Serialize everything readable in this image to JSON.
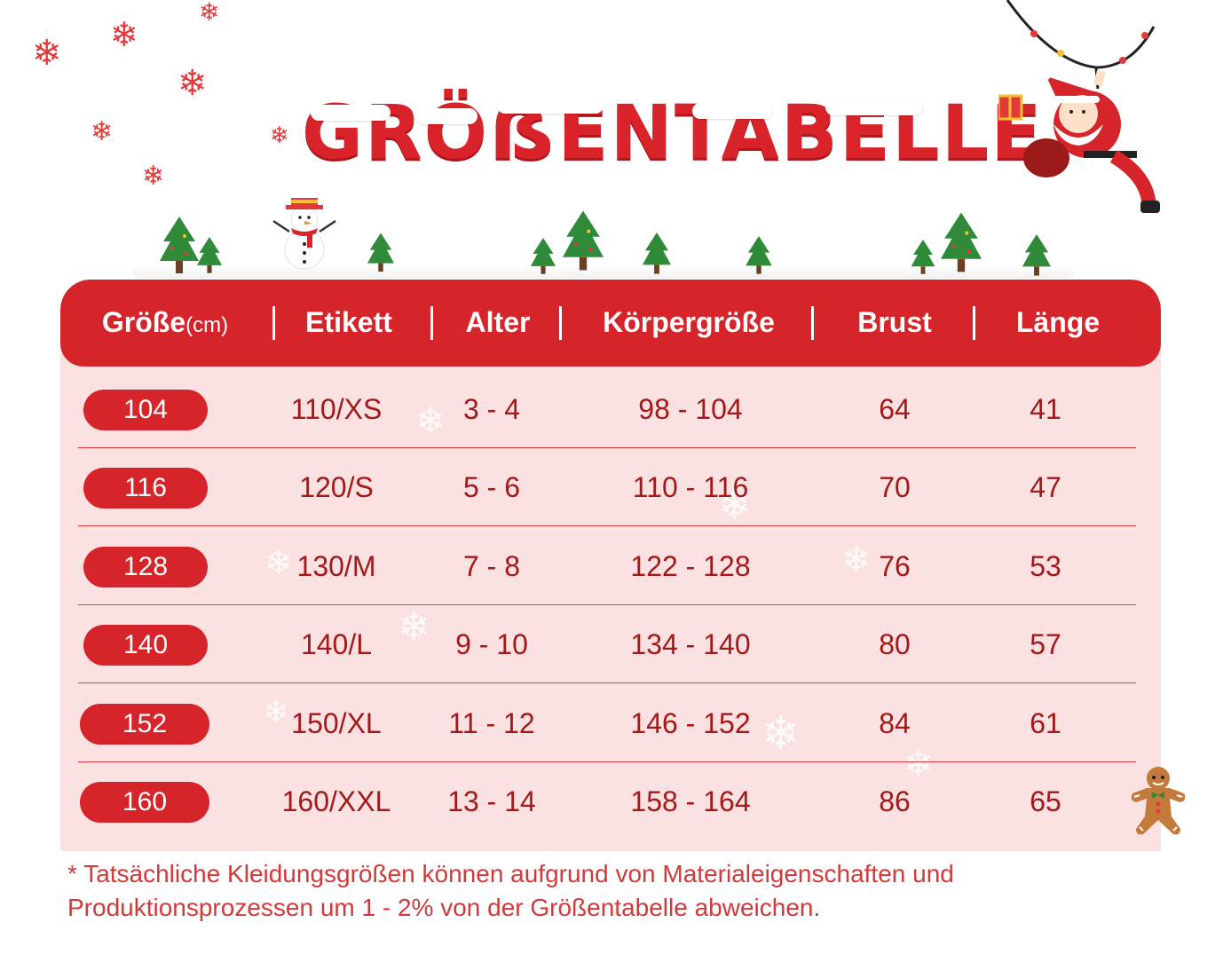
{
  "title": "GRÖẞENTABELLE",
  "header": {
    "col_size": "Größe",
    "col_size_unit": "(cm)",
    "col_label": "Etikett",
    "col_age": "Alter",
    "col_height": "Körpergröße",
    "col_chest": "Brust",
    "col_length": "Länge"
  },
  "rows": [
    {
      "size": "104",
      "label": "110/XS",
      "age": "3 - 4",
      "height": "98 - 104",
      "chest": "64",
      "length": "41"
    },
    {
      "size": "116",
      "label": "120/S",
      "age": "5 - 6",
      "height": "110 - 116",
      "chest": "70",
      "length": "47"
    },
    {
      "size": "128",
      "label": "130/M",
      "age": "7 - 8",
      "height": "122 - 128",
      "chest": "76",
      "length": "53"
    },
    {
      "size": "140",
      "label": "140/L",
      "age": "9 - 10",
      "height": "134 - 140",
      "chest": "80",
      "length": "57"
    },
    {
      "size": "152",
      "label": "150/XL",
      "age": "11 - 12",
      "height": "146 - 152",
      "chest": "84",
      "length": "61"
    },
    {
      "size": "160",
      "label": "160/XXL",
      "age": "13 - 14",
      "height": "158 - 164",
      "chest": "86",
      "length": "65"
    }
  ],
  "footnote": {
    "marker": "*",
    "line1": "Tatsächliche Kleidungsgrößen können aufgrund von Materialeigenschaften und",
    "line2": "Produktionsprozessen um 1 - 2% von der Größentabelle abweichen."
  },
  "colors": {
    "accent_red": "#d6242b",
    "table_bg": "#fbe1e1",
    "text_dark_red": "#a31818"
  },
  "icons": [
    "snowflake-icon",
    "christmas-tree-icon",
    "snowman-icon",
    "santa-icon",
    "gingerbread-man-icon"
  ]
}
